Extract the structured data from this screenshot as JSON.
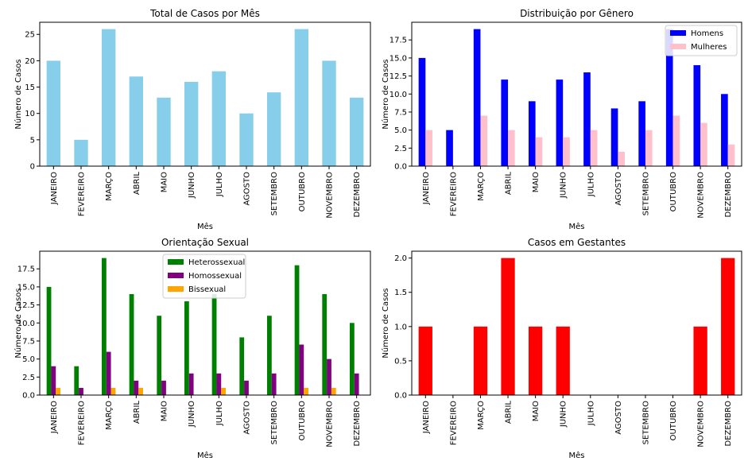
{
  "chart_data": [
    {
      "type": "bar",
      "title": "Total de Casos por Mês",
      "xlabel": "Mês",
      "ylabel": "Número de Casos",
      "ylim": [
        0,
        27.3
      ],
      "yticks": [
        0,
        5,
        10,
        15,
        20,
        25
      ],
      "ytick_labels": [
        "0",
        "5",
        "10",
        "15",
        "20",
        "25"
      ],
      "categories": [
        "JANEIRO",
        "FEVEREIRO",
        "MARÇO",
        "ABRIL",
        "MAIO",
        "JUNHO",
        "JULHO",
        "AGOSTO",
        "SETEMBRO",
        "OUTUBRO",
        "NOVEMBRO",
        "DEZEMBRO"
      ],
      "series": [
        {
          "values": [
            20,
            5,
            26,
            17,
            13,
            16,
            18,
            10,
            14,
            26,
            20,
            13
          ],
          "color": "#87ceeb"
        }
      ],
      "legend": null
    },
    {
      "type": "bar",
      "title": "Distribuição por Gênero",
      "xlabel": "Mês",
      "ylabel": "Número de Casos",
      "ylim": [
        0,
        19.95
      ],
      "yticks": [
        0,
        2.5,
        5,
        7.5,
        10,
        12.5,
        15,
        17.5
      ],
      "ytick_labels": [
        "0.0",
        "2.5",
        "5.0",
        "7.5",
        "10.0",
        "12.5",
        "15.0",
        "17.5"
      ],
      "categories": [
        "JANEIRO",
        "FEVEREIRO",
        "MARÇO",
        "ABRIL",
        "MAIO",
        "JUNHO",
        "JULHO",
        "AGOSTO",
        "SETEMBRO",
        "OUTUBRO",
        "NOVEMBRO",
        "DEZEMBRO"
      ],
      "series": [
        {
          "name": "Homens",
          "values": [
            15,
            5,
            19,
            12,
            9,
            12,
            13,
            8,
            9,
            19,
            14,
            10
          ],
          "color": "#0000ff"
        },
        {
          "name": "Mulheres",
          "values": [
            5,
            0,
            7,
            5,
            4,
            4,
            5,
            2,
            5,
            7,
            6,
            3
          ],
          "color": "#ffc0cb"
        }
      ],
      "legend": "top-right"
    },
    {
      "type": "bar",
      "title": "Orientação Sexual",
      "xlabel": "Mês",
      "ylabel": "Número de Casos",
      "ylim": [
        0,
        19.95
      ],
      "yticks": [
        0,
        2.5,
        5,
        7.5,
        10,
        12.5,
        15,
        17.5
      ],
      "ytick_labels": [
        "0.0",
        "2.5",
        "5.0",
        "7.5",
        "10.0",
        "12.5",
        "15.0",
        "17.5"
      ],
      "categories": [
        "JANEIRO",
        "FEVEREIRO",
        "MARÇO",
        "ABRIL",
        "MAIO",
        "JUNHO",
        "JULHO",
        "AGOSTO",
        "SETEMBRO",
        "OUTUBRO",
        "NOVEMBRO",
        "DEZEMBRO"
      ],
      "series": [
        {
          "name": "Heterossexual",
          "values": [
            15,
            4,
            19,
            14,
            11,
            13,
            14,
            8,
            11,
            18,
            14,
            10
          ],
          "color": "#008000"
        },
        {
          "name": "Homossexual",
          "values": [
            4,
            1,
            6,
            2,
            2,
            3,
            3,
            2,
            3,
            7,
            5,
            3
          ],
          "color": "#800080"
        },
        {
          "name": "Bissexual",
          "values": [
            1,
            0,
            1,
            1,
            0,
            0,
            1,
            0,
            0,
            1,
            1,
            0
          ],
          "color": "#ffa500"
        }
      ],
      "legend": "top-center"
    },
    {
      "type": "bar",
      "title": "Casos em Gestantes",
      "xlabel": "Mês",
      "ylabel": "Número de Casos",
      "ylim": [
        0,
        2.1
      ],
      "yticks": [
        0,
        0.5,
        1,
        1.5,
        2
      ],
      "ytick_labels": [
        "0.0",
        "0.5",
        "1.0",
        "1.5",
        "2.0"
      ],
      "categories": [
        "JANEIRO",
        "FEVEREIRO",
        "MARÇO",
        "ABRIL",
        "MAIO",
        "JUNHO",
        "JULHO",
        "AGOSTO",
        "SETEMBRO",
        "OUTUBRO",
        "NOVEMBRO",
        "DEZEMBRO"
      ],
      "series": [
        {
          "values": [
            1,
            0,
            1,
            2,
            1,
            1,
            0,
            0,
            0,
            0,
            1,
            2
          ],
          "color": "#ff0000"
        }
      ],
      "legend": null
    }
  ]
}
